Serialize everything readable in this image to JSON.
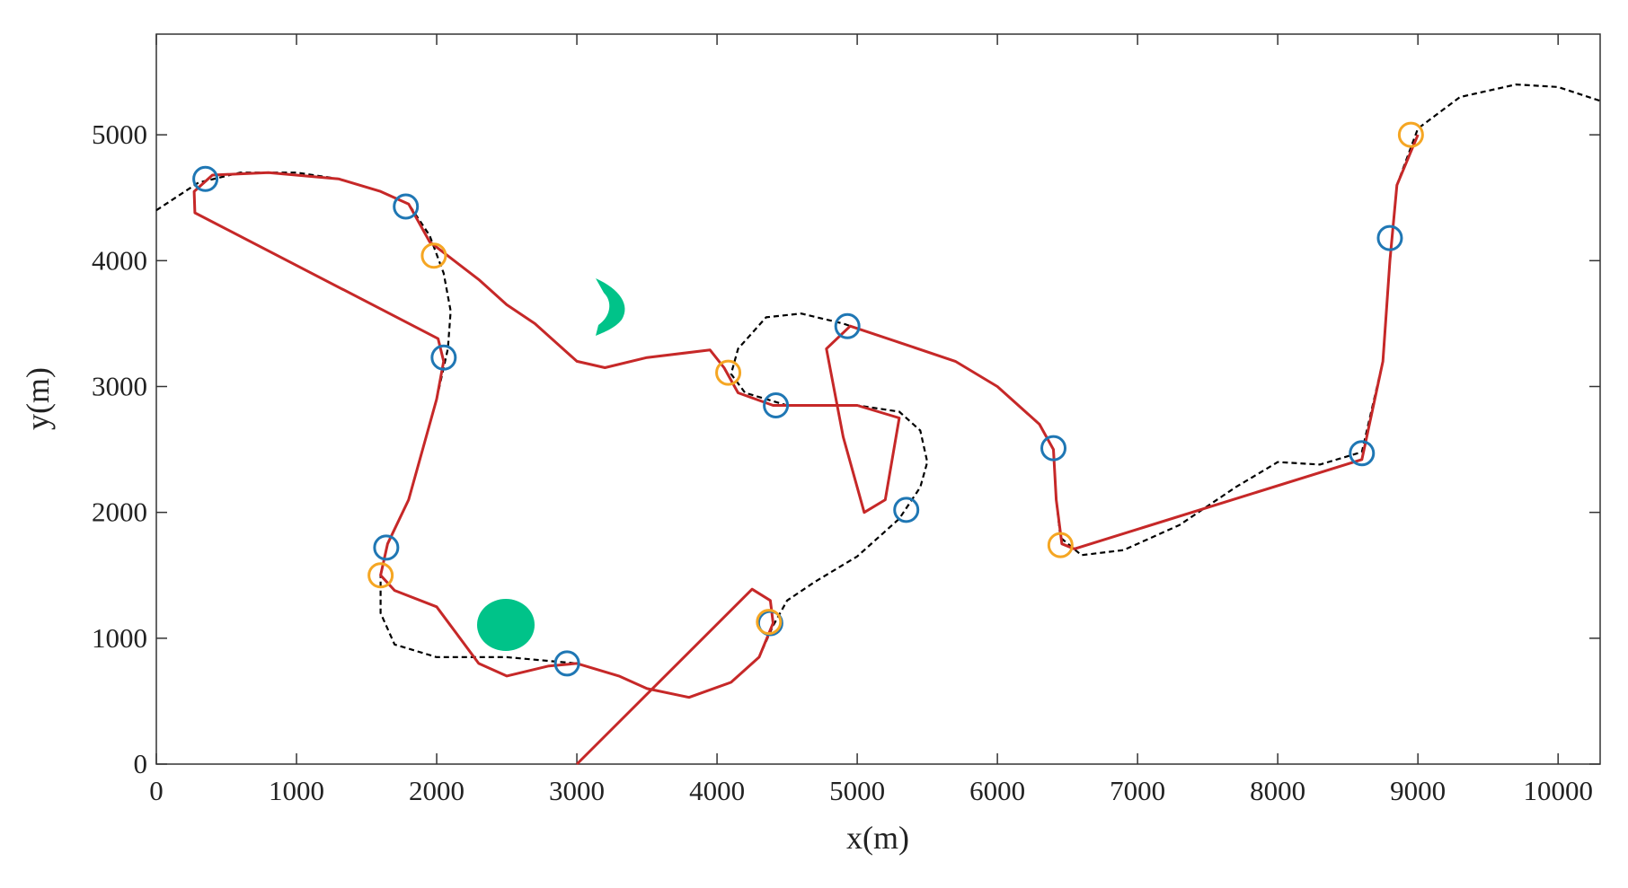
{
  "chart_data": {
    "type": "line",
    "x_label": "x(m)",
    "y_label": "y(m)",
    "xlim": [
      0,
      10300
    ],
    "ylim": [
      0,
      5800
    ],
    "xticks": [
      0,
      1000,
      2000,
      3000,
      4000,
      5000,
      6000,
      7000,
      8000,
      9000,
      10000
    ],
    "yticks": [
      0,
      1000,
      2000,
      3000,
      4000,
      5000
    ],
    "series": [
      {
        "color": "#000000",
        "style": "dashed",
        "x": [
          0,
          300,
          600,
          1000,
          1300,
          1600,
          1800,
          1950,
          2050,
          2100,
          2080,
          2000,
          1900,
          1800,
          1650,
          1600,
          1600,
          1700,
          2000,
          2500,
          3000,
          3300,
          3500,
          3800,
          4100,
          4300,
          4400,
          4500,
          4700,
          5000,
          5300,
          5450,
          5500,
          5450,
          5300,
          5000,
          4500,
          4200,
          4100,
          4150,
          4350,
          4600,
          4900,
          5300,
          5700,
          6000,
          6300,
          6400,
          6420,
          6450,
          6600,
          6900,
          7300,
          7700,
          8000,
          8300,
          8600,
          8750,
          8800,
          8850,
          9000,
          9300,
          9700,
          10000,
          10300
        ],
        "values": [
          4400,
          4620,
          4700,
          4700,
          4650,
          4550,
          4450,
          4200,
          3900,
          3600,
          3300,
          2900,
          2500,
          2100,
          1750,
          1500,
          1200,
          950,
          850,
          850,
          800,
          700,
          600,
          530,
          650,
          850,
          1100,
          1300,
          1450,
          1650,
          1950,
          2200,
          2400,
          2650,
          2800,
          2850,
          2850,
          2950,
          3100,
          3300,
          3550,
          3580,
          3500,
          3350,
          3200,
          3000,
          2700,
          2500,
          2100,
          1800,
          1660,
          1700,
          1900,
          2200,
          2400,
          2380,
          2480,
          3200,
          4000,
          4600,
          5050,
          5300,
          5400,
          5380,
          5270
        ]
      },
      {
        "color": "#c62828",
        "style": "solid",
        "x": [
          3000,
          4250,
          4380,
          4400,
          4300,
          4100,
          3800,
          3500,
          3300,
          3000,
          2800,
          2500,
          2300,
          2100,
          2000,
          1700,
          1600,
          1650,
          1800,
          1900,
          2000,
          2050,
          2010,
          275,
          270,
          400,
          800,
          1300,
          1600,
          1800,
          1950,
          2300,
          2500,
          2700,
          3000,
          3200,
          3500,
          3950,
          4050,
          4150,
          4400,
          5000,
          5300,
          5200,
          5050,
          4900,
          4780,
          4950,
          5300,
          5700,
          6000,
          6300,
          6400,
          6420,
          6460,
          6550,
          8600,
          8750,
          8800,
          8850,
          9000
        ],
        "values": [
          0,
          1390,
          1300,
          1120,
          850,
          650,
          530,
          600,
          700,
          800,
          780,
          700,
          800,
          1100,
          1250,
          1380,
          1500,
          1750,
          2100,
          2500,
          2900,
          3200,
          3380,
          4380,
          4550,
          4680,
          4700,
          4650,
          4550,
          4450,
          4150,
          3850,
          3650,
          3500,
          3200,
          3150,
          3230,
          3290,
          3150,
          2950,
          2850,
          2850,
          2750,
          2100,
          2000,
          2600,
          3300,
          3480,
          3350,
          3200,
          3000,
          2700,
          2500,
          2100,
          1750,
          1710,
          2420,
          3200,
          4000,
          4600,
          5000
        ]
      },
      {
        "color": "#1f77b4",
        "style": "circle",
        "x": [
          350,
          1780,
          2050,
          1640,
          2930,
          4380,
          4420,
          4930,
          5350,
          6400,
          8600,
          8800
        ],
        "values": [
          4650,
          4430,
          3230,
          1720,
          800,
          1120,
          2850,
          3480,
          2020,
          2510,
          2470,
          4180
        ]
      },
      {
        "color": "#f5a623",
        "style": "circle",
        "x": [
          1980,
          1600,
          4080,
          4370,
          6450,
          8950
        ],
        "values": [
          4040,
          1500,
          3110,
          1130,
          1740,
          5000
        ]
      }
    ]
  }
}
